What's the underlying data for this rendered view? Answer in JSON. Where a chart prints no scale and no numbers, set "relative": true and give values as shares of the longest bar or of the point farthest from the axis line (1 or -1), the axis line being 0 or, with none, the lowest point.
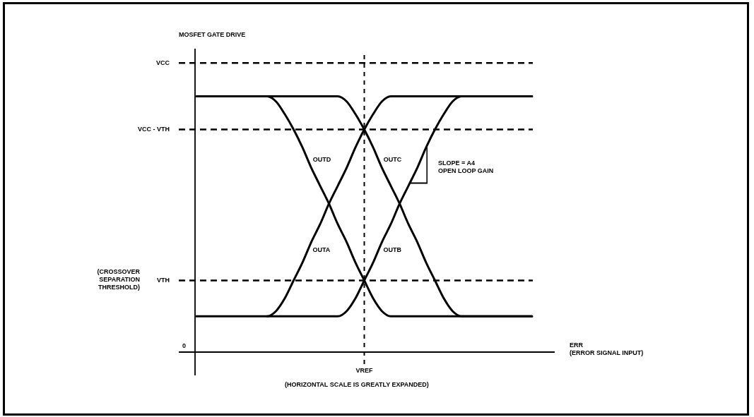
{
  "chart_data": {
    "type": "line",
    "relative": true,
    "categories": [
      null,
      null,
      null,
      null,
      null,
      null,
      null,
      null,
      null,
      null,
      null,
      null,
      null,
      null,
      null,
      null,
      null,
      null,
      null,
      null,
      null,
      null,
      null,
      null,
      null,
      null,
      null,
      null,
      null,
      null,
      null,
      null,
      null,
      null,
      null,
      null,
      null,
      null,
      null
    ],
    "series": [
      {
        "name": "OUTA",
        "color": "#000000",
        "values": [
          0.14,
          0.14,
          0.14,
          0.14,
          0.14,
          0.14,
          0.14,
          0.14,
          0.14,
          0.16,
          0.21,
          0.28,
          0.35,
          0.43,
          0.5,
          0.58,
          0.65,
          0.72,
          0.8,
          0.87,
          0.93,
          0.98,
          1,
          1,
          1,
          1,
          1,
          1,
          1,
          1,
          1,
          1,
          1,
          1,
          1,
          1,
          1,
          1,
          1
        ]
      },
      {
        "name": "OUTB",
        "color": "#000000",
        "values": [
          null,
          null,
          null,
          null,
          null,
          null,
          null,
          null,
          0.14,
          0.14,
          0.14,
          0.14,
          0.14,
          0.14,
          0.14,
          0.14,
          0.14,
          0.16,
          0.21,
          0.28,
          0.35,
          0.43,
          0.5,
          0.58,
          0.65,
          0.72,
          0.8,
          0.87,
          0.93,
          0.98,
          1,
          1,
          1,
          1,
          1,
          1,
          1,
          1,
          1
        ]
      },
      {
        "name": "OUTC",
        "color": "#000000",
        "values": [
          null,
          null,
          null,
          null,
          null,
          null,
          null,
          null,
          1,
          1,
          1,
          1,
          1,
          1,
          1,
          1,
          1,
          0.98,
          0.93,
          0.87,
          0.8,
          0.72,
          0.65,
          0.58,
          0.5,
          0.43,
          0.35,
          0.28,
          0.21,
          0.16,
          0.14,
          0.14,
          0.14,
          0.14,
          0.14,
          0.14,
          0.14,
          0.14,
          0.14
        ]
      },
      {
        "name": "OUTD",
        "color": "#000000",
        "values": [
          1,
          1,
          1,
          1,
          1,
          1,
          1,
          1,
          1,
          0.98,
          0.93,
          0.87,
          0.8,
          0.72,
          0.65,
          0.58,
          0.5,
          0.43,
          0.35,
          0.28,
          0.21,
          0.16,
          0.14,
          0.14,
          0.14,
          0.14,
          0.14,
          0.14,
          0.14,
          0.14,
          0.14,
          0.14,
          0.14,
          0.14,
          0.14,
          0.14,
          0.14,
          0.14,
          0.14
        ]
      }
    ],
    "ref_lines": [
      {
        "axis": "y",
        "value": 1.13,
        "label": "VCC",
        "line_style": "dashed"
      },
      {
        "axis": "y",
        "value": 0.87,
        "label": "VCC - VTH",
        "line_style": "dashed"
      },
      {
        "axis": "y",
        "value": 0.28,
        "label": "VTH",
        "line_style": "dashed"
      }
    ],
    "annotations": [
      "MOSFET GATE DRIVE",
      "ERR\n(ERROR SIGNAL INPUT)",
      "0",
      "(CROSSOVER\nSEPARATION\nTHRESHOLD)",
      "SLOPE = A4\nOPEN LOOP GAIN",
      "VREF",
      "(HORIZONTAL SCALE IS GREATLY EXPANDED)"
    ]
  }
}
